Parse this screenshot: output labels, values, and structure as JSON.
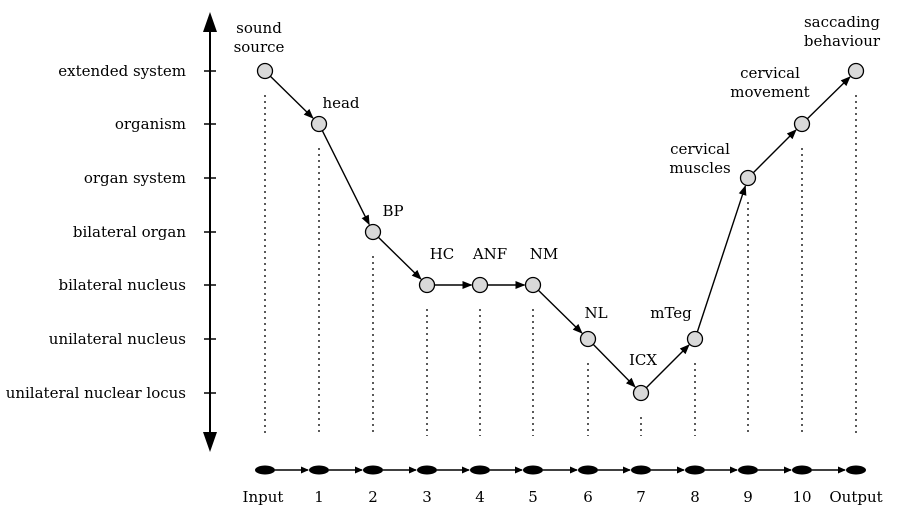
{
  "diagram": {
    "levels": [
      "extended system",
      "organism",
      "organ system",
      "bilateral organ",
      "bilateral nucleus",
      "unilateral nucleus",
      "unilateral nuclear locus"
    ],
    "steps": [
      "Input",
      "1",
      "2",
      "3",
      "4",
      "5",
      "6",
      "7",
      "8",
      "9",
      "10",
      "Output"
    ],
    "nodes": [
      {
        "label": [
          "sound",
          "source"
        ],
        "step": 0,
        "level": 0
      },
      {
        "label": [
          "head"
        ],
        "step": 1,
        "level": 1
      },
      {
        "label": [
          "BP"
        ],
        "step": 2,
        "level": 3
      },
      {
        "label": [
          "HC"
        ],
        "step": 3,
        "level": 4
      },
      {
        "label": [
          "ANF"
        ],
        "step": 4,
        "level": 4
      },
      {
        "label": [
          "NM"
        ],
        "step": 5,
        "level": 4
      },
      {
        "label": [
          "NL"
        ],
        "step": 6,
        "level": 5
      },
      {
        "label": [
          "ICX"
        ],
        "step": 7,
        "level": 6
      },
      {
        "label": [
          "mTeg"
        ],
        "step": 8,
        "level": 5
      },
      {
        "label": [
          "cervical",
          "muscles"
        ],
        "step": 9,
        "level": 2
      },
      {
        "label": [
          "cervical",
          "movement"
        ],
        "step": 10,
        "level": 1
      },
      {
        "label": [
          "saccading",
          "behaviour"
        ],
        "step": 11,
        "level": 0
      }
    ],
    "colors": {
      "node_fill": "#d9d9d9",
      "stroke": "#000000"
    }
  }
}
